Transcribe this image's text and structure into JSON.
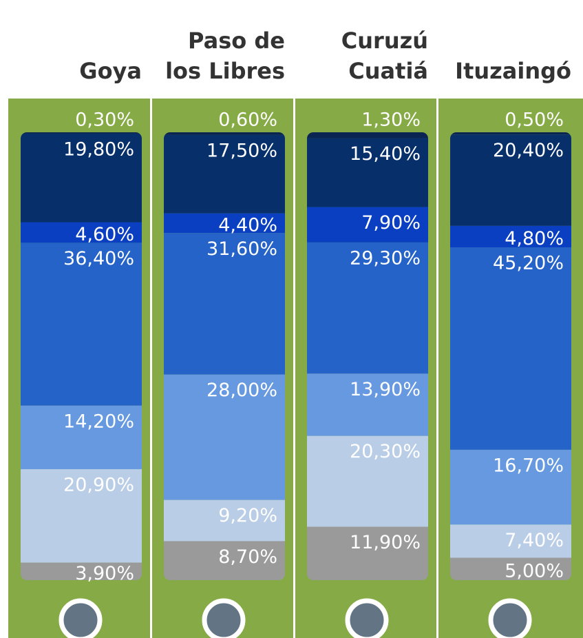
{
  "chart_data": {
    "type": "bar",
    "stacked": true,
    "categories": [
      "Goya",
      "Paso de los Libres",
      "Curuzú Cuatiá",
      "Ituzaingó"
    ],
    "series": [
      {
        "color": "#0b2552",
        "values": [
          0.3,
          0.6,
          1.3,
          0.5
        ],
        "value_labels": [
          "0,30%",
          "0,60%",
          "1,30%",
          "0,50%"
        ]
      },
      {
        "color": "#07306b",
        "values": [
          19.8,
          17.5,
          15.4,
          20.4
        ],
        "value_labels": [
          "19,80%",
          "17,50%",
          "15,40%",
          "20,40%"
        ]
      },
      {
        "color": "#0a3fc2",
        "values": [
          4.6,
          4.4,
          7.9,
          4.8
        ],
        "value_labels": [
          "4,60%",
          "4,40%",
          "7,90%",
          "4,80%"
        ]
      },
      {
        "color": "#2563c9",
        "values": [
          36.4,
          31.6,
          29.3,
          45.2
        ],
        "value_labels": [
          "36,40%",
          "31,60%",
          "29,30%",
          "45,20%"
        ]
      },
      {
        "color": "#6699e0",
        "values": [
          14.2,
          28.0,
          13.9,
          16.7
        ],
        "value_labels": [
          "14,20%",
          "28,00%",
          "13,90%",
          "16,70%"
        ]
      },
      {
        "color": "#b9cde6",
        "values": [
          20.9,
          9.2,
          20.3,
          7.4
        ],
        "value_labels": [
          "20,90%",
          "9,20%",
          "20,30%",
          "7,40%"
        ]
      },
      {
        "color": "#9a9a9a",
        "values": [
          3.9,
          8.7,
          11.9,
          5.0
        ],
        "value_labels": [
          "3,90%",
          "8,70%",
          "11,90%",
          "5,00%"
        ]
      }
    ]
  }
}
